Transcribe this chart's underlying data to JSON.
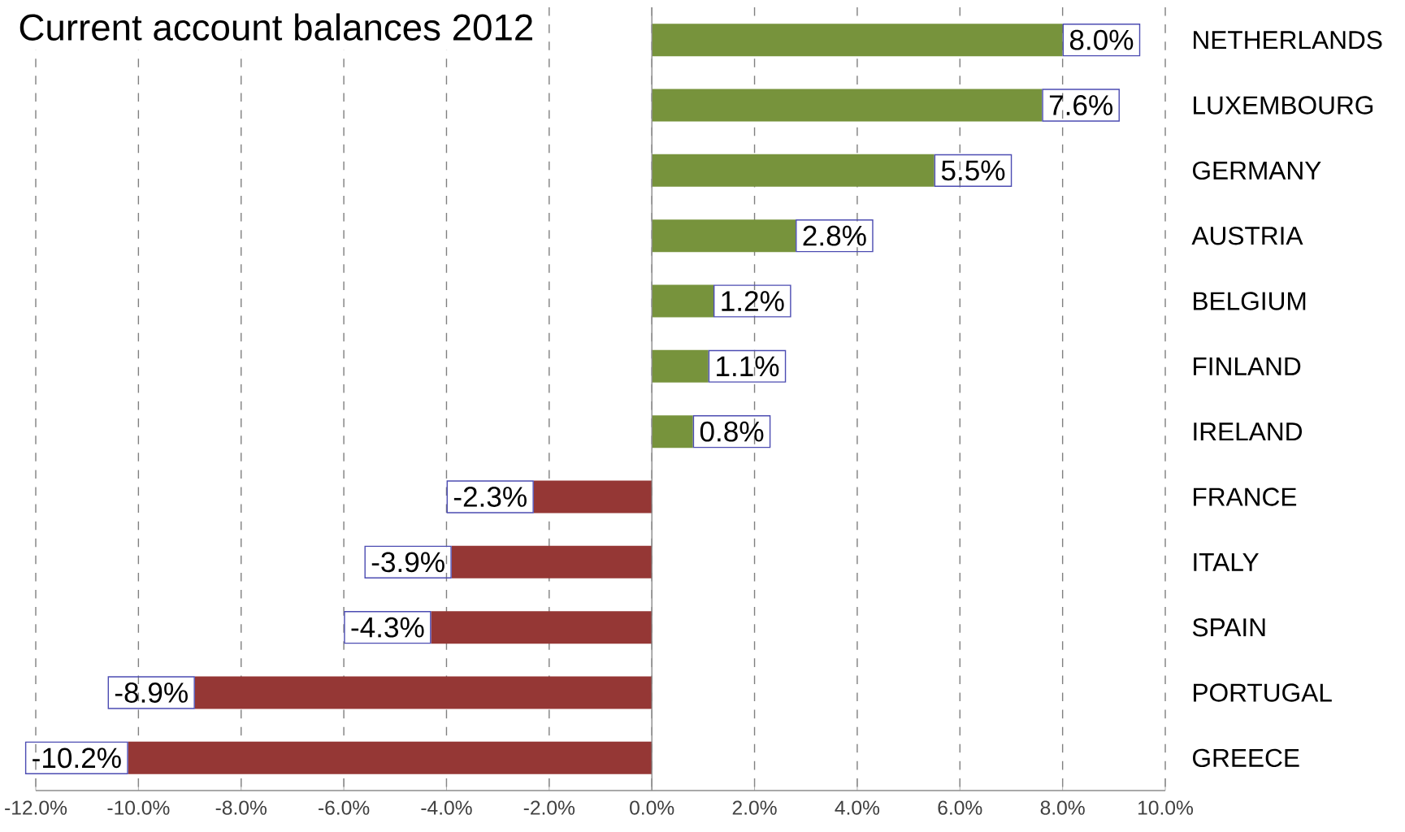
{
  "chart_data": {
    "type": "bar",
    "orientation": "horizontal",
    "title": "Current account balances 2012",
    "categories": [
      "NETHERLANDS",
      "LUXEMBOURG",
      "GERMANY",
      "AUSTRIA",
      "BELGIUM",
      "FINLAND",
      "IRELAND",
      "FRANCE",
      "ITALY",
      "SPAIN",
      "PORTUGAL",
      "GREECE"
    ],
    "values": [
      8.0,
      7.6,
      5.5,
      2.8,
      1.2,
      1.1,
      0.8,
      -2.3,
      -3.9,
      -4.3,
      -8.9,
      -10.2
    ],
    "value_labels": [
      "8.0%",
      "7.6%",
      "5.5%",
      "2.8%",
      "1.2%",
      "1.1%",
      "0.8%",
      "-2.3%",
      "-3.9%",
      "-4.3%",
      "-8.9%",
      "-10.2%"
    ],
    "colors": [
      "#77933c",
      "#77933c",
      "#77933c",
      "#77933c",
      "#77933c",
      "#77933c",
      "#77933c",
      "#953735",
      "#953735",
      "#953735",
      "#953735",
      "#953735"
    ],
    "xlim": [
      -12,
      10
    ],
    "xticks": [
      {
        "value": -12,
        "label": "-12.0%"
      },
      {
        "value": -10,
        "label": "-10.0%"
      },
      {
        "value": -8,
        "label": "-8.0%"
      },
      {
        "value": -6,
        "label": "-6.0%"
      },
      {
        "value": -4,
        "label": "-4.0%"
      },
      {
        "value": -2,
        "label": "-2.0%"
      },
      {
        "value": 0,
        "label": "0.0%"
      },
      {
        "value": 2,
        "label": "2.0%"
      },
      {
        "value": 4,
        "label": "4.0%"
      },
      {
        "value": 6,
        "label": "6.0%"
      },
      {
        "value": 8,
        "label": "8.0%"
      },
      {
        "value": 10,
        "label": "10.0%"
      }
    ],
    "grid": "x"
  }
}
